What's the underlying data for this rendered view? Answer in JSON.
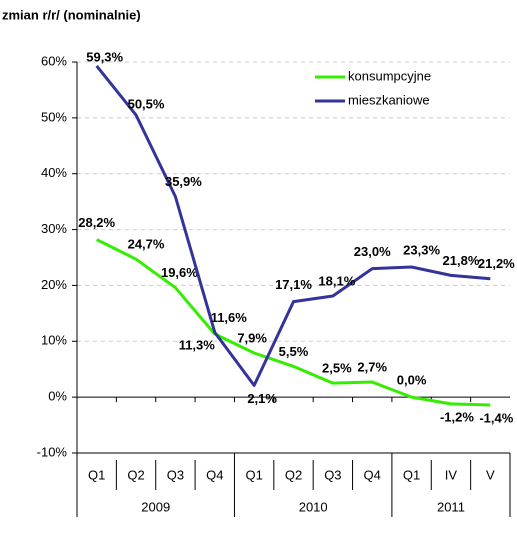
{
  "chart_data": {
    "type": "line",
    "title": "zmian r/r/ (nominalnie)",
    "categories": [
      "Q1",
      "Q2",
      "Q3",
      "Q4",
      "Q1",
      "Q2",
      "Q3",
      "Q4",
      "Q1",
      "IV",
      "V"
    ],
    "x_groups": [
      {
        "label": "2009",
        "count": 4
      },
      {
        "label": "2010",
        "count": 4
      },
      {
        "label": "2011",
        "count": 3
      }
    ],
    "series": [
      {
        "name": "konsumpcyjne",
        "color": "#33ee00",
        "values": [
          28.2,
          24.7,
          19.6,
          11.3,
          7.9,
          5.5,
          2.5,
          2.7,
          0.0,
          -1.2,
          -1.4
        ],
        "value_labels": [
          "28,2%",
          "24,7%",
          "19,6%",
          "11,3%",
          "7,9%",
          "5,5%",
          "2,5%",
          "2,7%",
          "0,0%",
          "-1,2%",
          "-1,4%"
        ]
      },
      {
        "name": "mieszkaniowe",
        "color": "#333399",
        "values": [
          59.3,
          50.5,
          35.9,
          11.6,
          2.1,
          17.1,
          18.1,
          23.0,
          23.3,
          21.8,
          21.2
        ],
        "value_labels": [
          "59,3%",
          "50,5%",
          "35,9%",
          "11,6%",
          "2,1%",
          "17,1%",
          "18,1%",
          "23,0%",
          "23,3%",
          "21,8%",
          "21,2%"
        ]
      }
    ],
    "ylim": [
      -10,
      60
    ],
    "yticks": [
      {
        "value": -10,
        "label": "-10%"
      },
      {
        "value": 0,
        "label": "0%"
      },
      {
        "value": 10,
        "label": "10%"
      },
      {
        "value": 20,
        "label": "20%"
      },
      {
        "value": 30,
        "label": "30%"
      },
      {
        "value": 40,
        "label": "40%"
      },
      {
        "value": 50,
        "label": "50%"
      },
      {
        "value": 60,
        "label": "60%"
      }
    ],
    "grid": true,
    "legend": "upper right"
  }
}
